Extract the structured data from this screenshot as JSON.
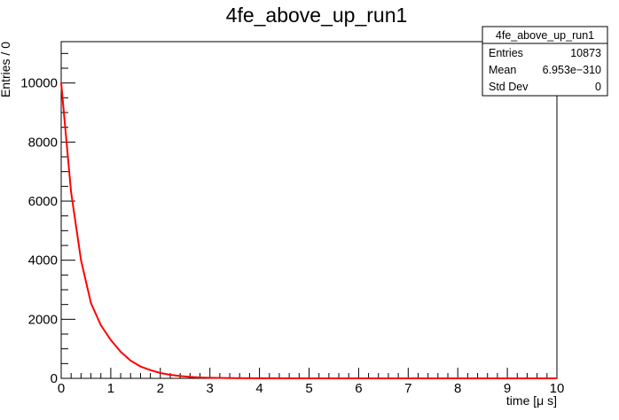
{
  "chart_data": {
    "type": "line",
    "title": "4fe_above_up_run1",
    "xlabel": "time [μ s]",
    "ylabel": "Entries / 0",
    "xlim": [
      0,
      10
    ],
    "ylim": [
      0,
      11400
    ],
    "x_ticks": [
      0,
      1,
      2,
      3,
      4,
      5,
      6,
      7,
      8,
      9,
      10
    ],
    "y_ticks": [
      0,
      2000,
      4000,
      6000,
      8000,
      10000
    ],
    "grid": false,
    "series": [
      {
        "color": "#ff0000",
        "x": [
          0.0,
          0.2,
          0.4,
          0.6,
          0.8,
          1.0,
          1.2,
          1.4,
          1.6,
          1.8,
          2.0,
          2.2,
          2.4,
          2.6,
          2.8,
          3.0,
          3.5,
          4.0,
          5.0,
          6.0,
          7.0,
          8.0,
          9.0,
          10.0
        ],
        "values": [
          10000,
          6300,
          4000,
          2550,
          1800,
          1300,
          900,
          600,
          400,
          280,
          180,
          120,
          80,
          50,
          30,
          20,
          8,
          3,
          1,
          0,
          0,
          0,
          0,
          0
        ]
      }
    ],
    "stats_box": {
      "title": "4fe_above_up_run1",
      "rows": [
        {
          "label": "Entries",
          "value": "10873"
        },
        {
          "label": "Mean",
          "value": "6.953e−310"
        },
        {
          "label": "Std Dev",
          "value": "0"
        }
      ]
    }
  }
}
